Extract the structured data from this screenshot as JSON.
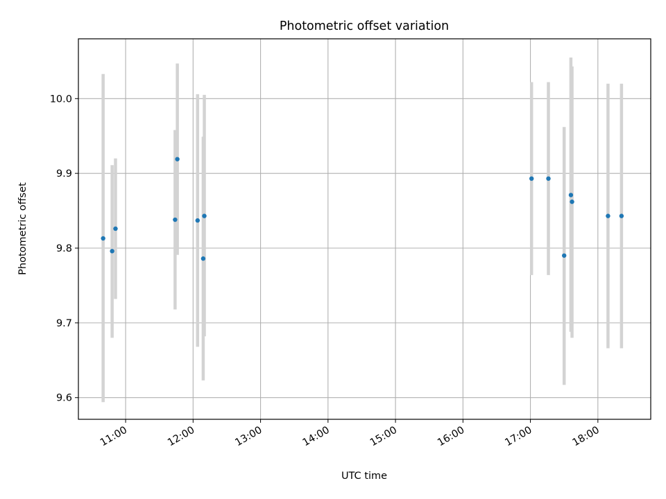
{
  "chart_data": {
    "type": "scatter",
    "title": "Photometric offset variation",
    "xlabel": "UTC time",
    "ylabel": "Photometric offset",
    "x_tick_labels": [
      "11:00",
      "12:00",
      "13:00",
      "14:00",
      "15:00",
      "16:00",
      "17:00",
      "18:00"
    ],
    "y_ticks": [
      "9.6",
      "9.7",
      "9.8",
      "9.9",
      "10.0"
    ],
    "xlim": [
      "10:18",
      "18:47"
    ],
    "ylim": [
      9.571,
      10.08
    ],
    "grid": true,
    "marker_color": "#1f77b4",
    "errorbar_color": "#d3d3d3",
    "points": [
      {
        "x": "10:40",
        "y": 9.813,
        "err_low": 9.594,
        "err_high": 10.033
      },
      {
        "x": "10:48",
        "y": 9.796,
        "err_low": 9.68,
        "err_high": 9.911
      },
      {
        "x": "10:51",
        "y": 9.826,
        "err_low": 9.732,
        "err_high": 9.92
      },
      {
        "x": "11:44",
        "y": 9.838,
        "err_low": 9.718,
        "err_high": 9.958
      },
      {
        "x": "11:46",
        "y": 9.919,
        "err_low": 9.791,
        "err_high": 10.047
      },
      {
        "x": "12:04",
        "y": 9.837,
        "err_low": 9.668,
        "err_high": 10.006
      },
      {
        "x": "12:09",
        "y": 9.786,
        "err_low": 9.623,
        "err_high": 9.949
      },
      {
        "x": "12:10",
        "y": 9.843,
        "err_low": 9.682,
        "err_high": 10.005
      },
      {
        "x": "17:01",
        "y": 9.893,
        "err_low": 9.764,
        "err_high": 10.022
      },
      {
        "x": "17:16",
        "y": 9.893,
        "err_low": 9.764,
        "err_high": 10.022
      },
      {
        "x": "17:30",
        "y": 9.79,
        "err_low": 9.617,
        "err_high": 9.962
      },
      {
        "x": "17:36",
        "y": 9.871,
        "err_low": 9.688,
        "err_high": 10.055
      },
      {
        "x": "17:37",
        "y": 9.862,
        "err_low": 9.68,
        "err_high": 10.043
      },
      {
        "x": "18:09",
        "y": 9.843,
        "err_low": 9.666,
        "err_high": 10.02
      },
      {
        "x": "18:21",
        "y": 9.843,
        "err_low": 9.666,
        "err_high": 10.02
      }
    ]
  }
}
